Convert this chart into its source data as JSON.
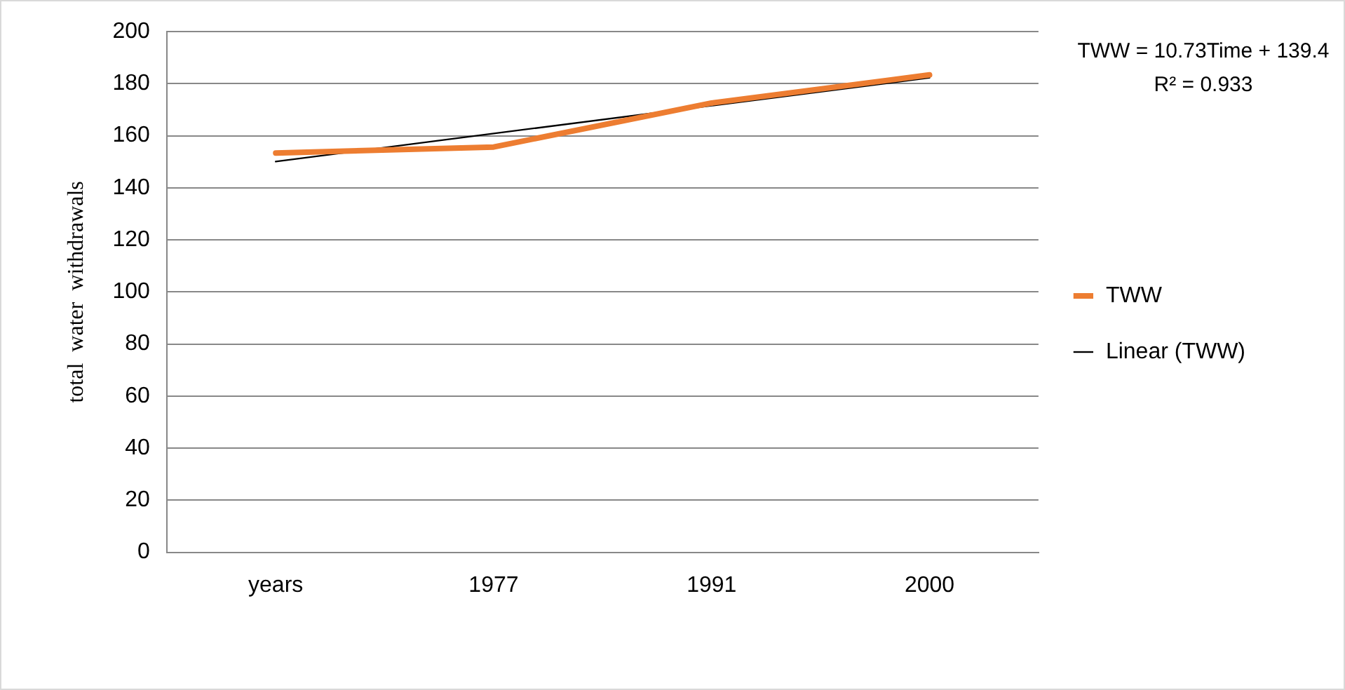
{
  "chart_data": {
    "type": "line",
    "ylabel": "total  water  withdrawals",
    "categories": [
      "years",
      "1977",
      "1991",
      "2000"
    ],
    "series": [
      {
        "name": "TWW",
        "color": "#ed7d31",
        "values": [
          153.4,
          155.7,
          172.6,
          183.4
        ]
      },
      {
        "name": "Linear (TWW)",
        "color": "#000000",
        "values": [
          150.1,
          160.9,
          171.6,
          182.3
        ]
      }
    ],
    "ylim": [
      0,
      200
    ],
    "yticks": [
      0,
      20,
      40,
      60,
      80,
      100,
      120,
      140,
      160,
      180,
      200
    ],
    "grid": "y",
    "legend": "right",
    "marker": "none",
    "annotations": [
      "TWW = 10.73Time + 139.4",
      "R² = 0.933"
    ]
  }
}
